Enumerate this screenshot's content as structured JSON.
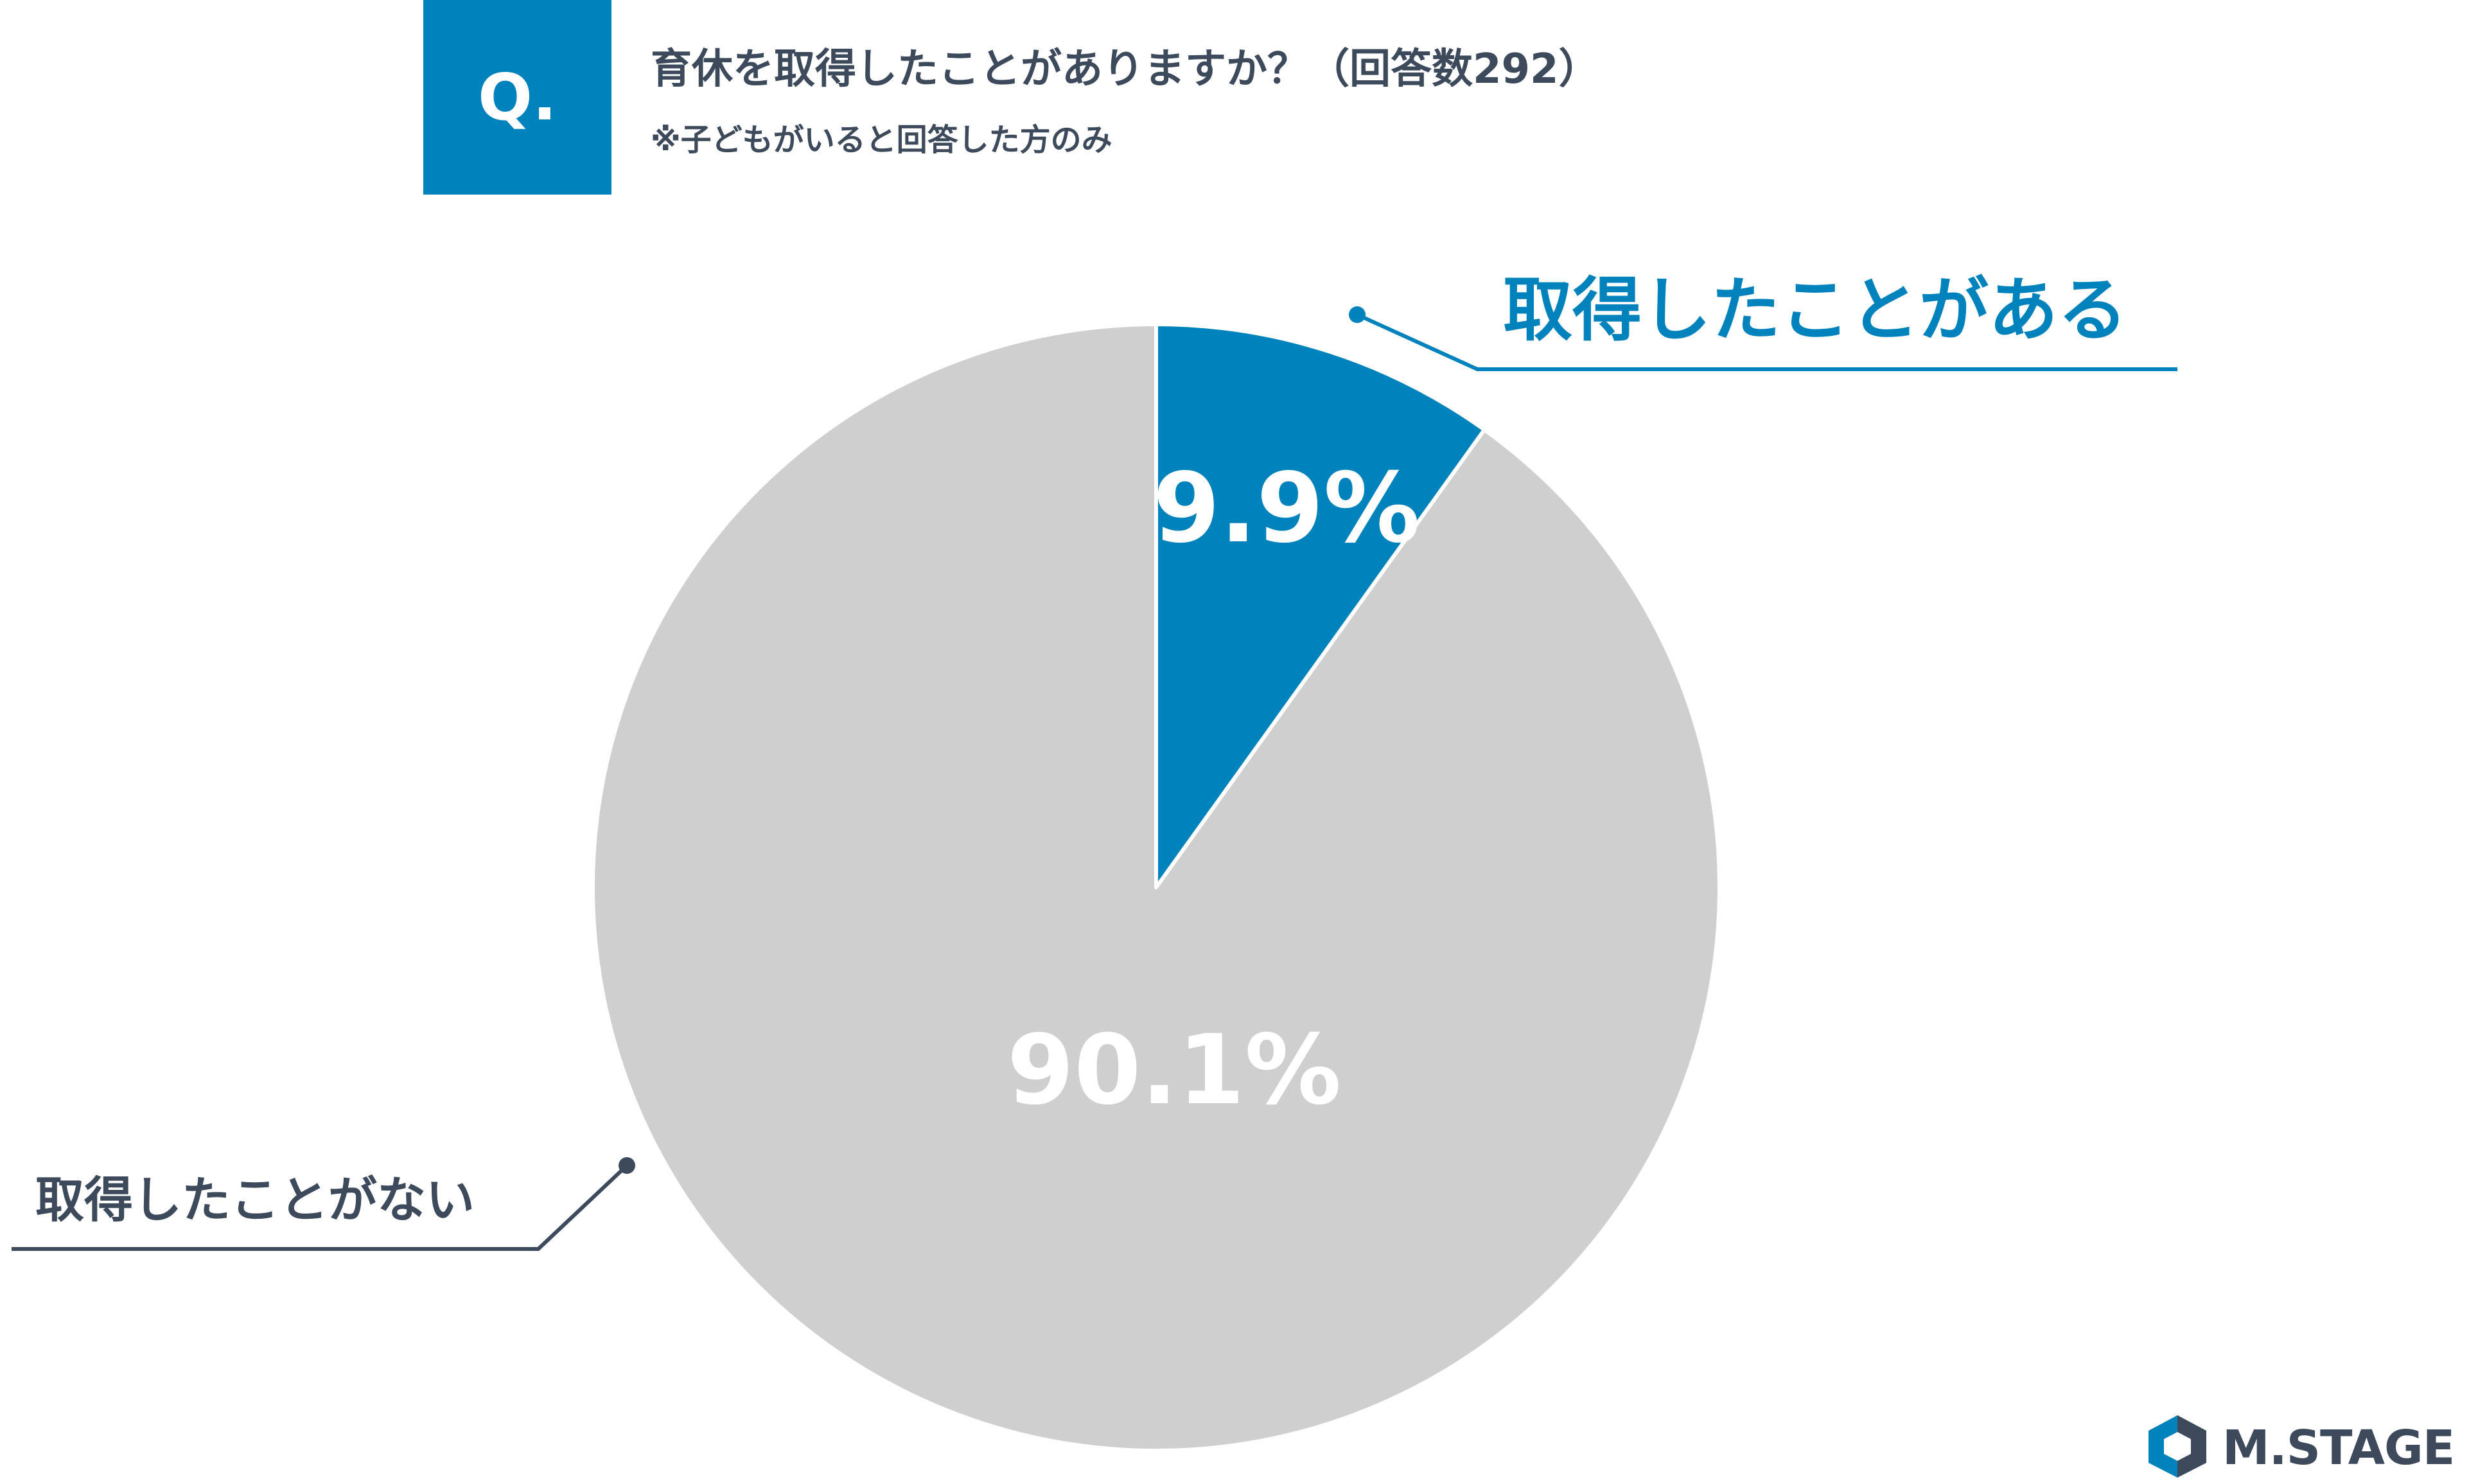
{
  "header": {
    "badge": "Q.",
    "question": "育休を取得したことがありますか？（回答数292）",
    "note": "※子どもがいると回答した方のみ"
  },
  "colors": {
    "accent": "#0083bd",
    "other": "#d0cfd0",
    "dark": "#3d4a5c",
    "white": "#ffffff"
  },
  "chart_data": {
    "type": "pie",
    "slices": [
      {
        "label": "取得したことがある",
        "value": 9.9,
        "value_label": "9.9%",
        "color": "#0083bd"
      },
      {
        "label": "取得したことがない",
        "value": 90.1,
        "value_label": "90.1%",
        "color": "#d0cfd0"
      }
    ]
  },
  "logo": {
    "text": "M.STAGE",
    "icon": "hexagon-logo-icon"
  }
}
